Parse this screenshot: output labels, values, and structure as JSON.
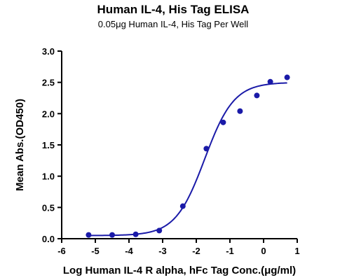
{
  "chart_data": {
    "type": "scatter",
    "title": "Human IL-4, His Tag ELISA",
    "subtitle": "0.05μg Human IL-4, His Tag Per Well",
    "xlabel": "Log Human IL-4 R alpha, hFc Tag Conc.(μg/ml)",
    "ylabel": "Mean Abs.(OD450)",
    "xlim": [
      -6,
      1
    ],
    "ylim": [
      0,
      3
    ],
    "x_ticks": [
      "-6",
      "-5",
      "-4",
      "-3",
      "-2",
      "-1",
      "0",
      "1"
    ],
    "y_ticks": [
      "0.0",
      "0.5",
      "1.0",
      "1.5",
      "2.0",
      "2.5",
      "3.0"
    ],
    "grid": false,
    "series": [
      {
        "color": "#1a1aa8",
        "points": [
          {
            "x": -5.2,
            "y": 0.06
          },
          {
            "x": -4.5,
            "y": 0.06
          },
          {
            "x": -3.8,
            "y": 0.07
          },
          {
            "x": -3.1,
            "y": 0.13
          },
          {
            "x": -2.4,
            "y": 0.52
          },
          {
            "x": -1.7,
            "y": 1.44
          },
          {
            "x": -1.2,
            "y": 1.86
          },
          {
            "x": -0.7,
            "y": 2.04
          },
          {
            "x": -0.2,
            "y": 2.29
          },
          {
            "x": 0.2,
            "y": 2.51
          },
          {
            "x": 0.7,
            "y": 2.58
          }
        ],
        "fit": {
          "model": "4PL",
          "bottom": 0.05,
          "top": 2.5,
          "logEC50": -1.75,
          "hill": 1.0
        }
      }
    ]
  }
}
